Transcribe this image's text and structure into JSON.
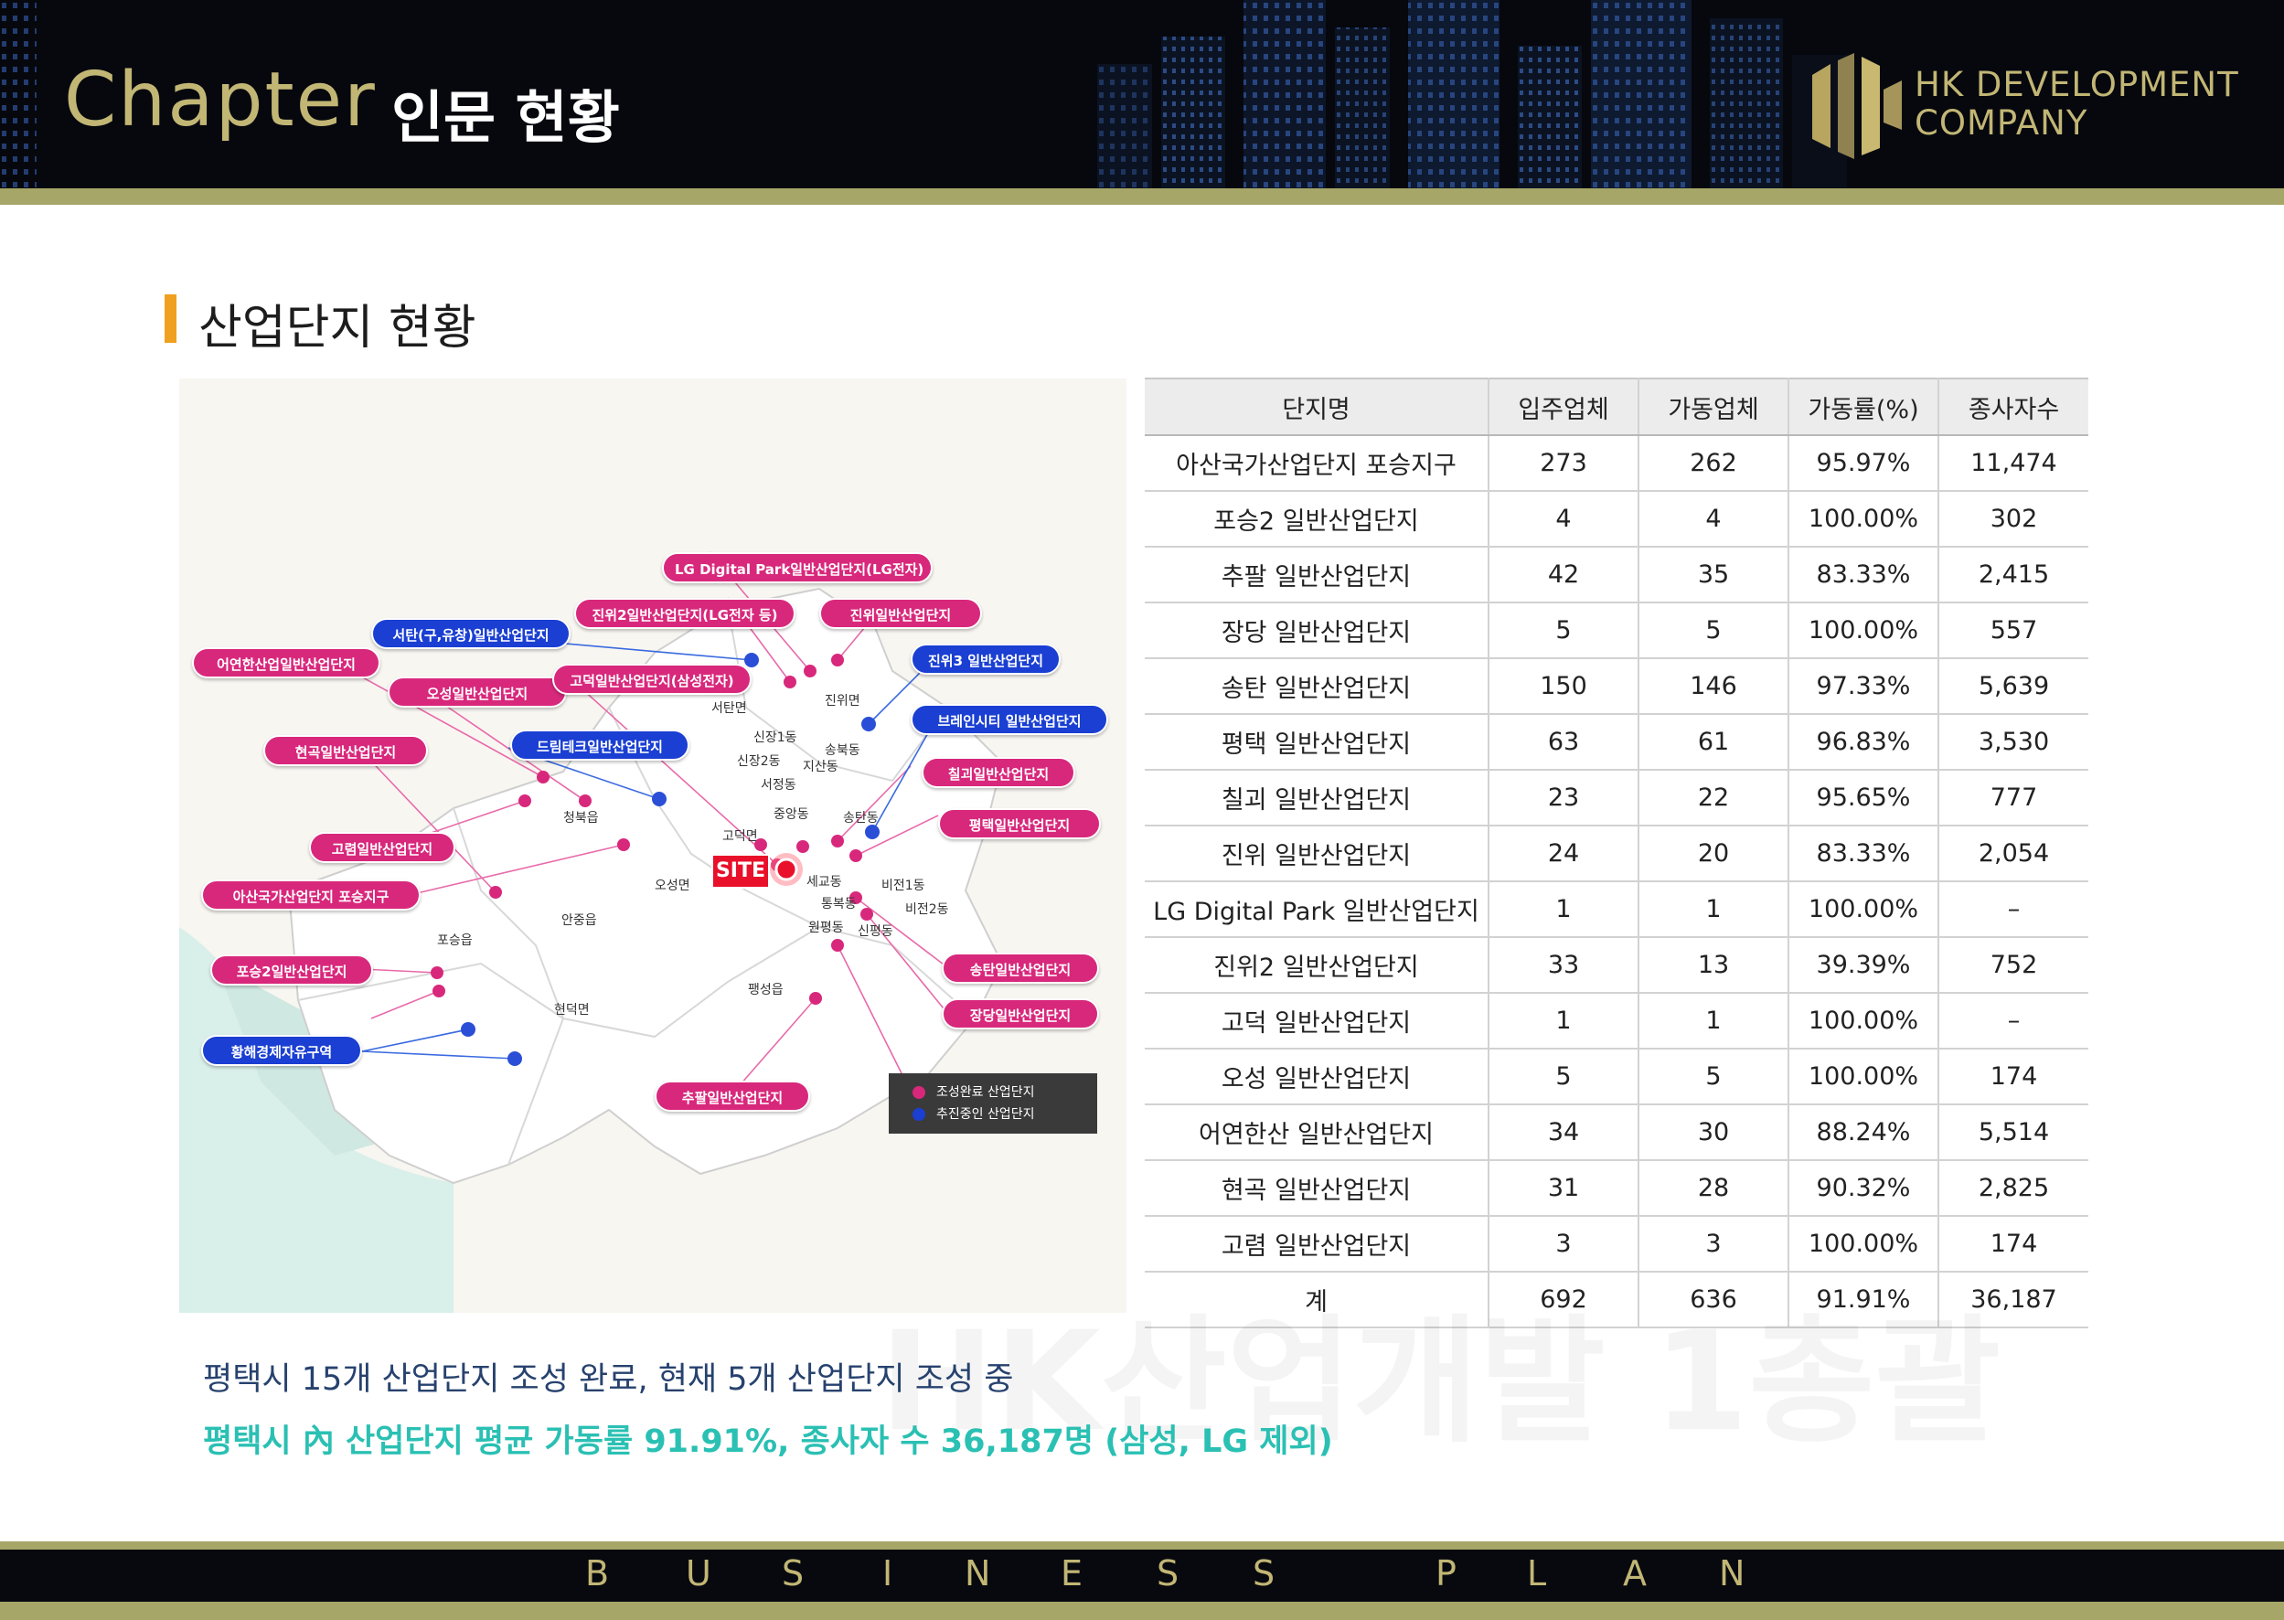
{
  "header": {
    "chapter": "Chapter",
    "subtitle": "인문 현황",
    "company_line1": "HK DEVELOPMENT",
    "company_line2": "COMPANY"
  },
  "section": {
    "title": "산업단지 현황"
  },
  "map": {
    "labels": [
      "LG Digital Park일반산업단지(LG전자)",
      "진위2일반산업단지(LG전자 등)",
      "진위일반산업단지",
      "서탄(구,유창)일반산업단지",
      "어연한산업일반산업단지",
      "오성일반산업단지",
      "고덕일반산업단지(삼성전자)",
      "진위3 일반산업단지",
      "브레인시티 일반산업단지",
      "현곡일반산업단지",
      "드림테크일반산업단지",
      "칠괴일반산업단지",
      "평택일반산업단지",
      "고렴일반산업단지",
      "아산국가산업단지 포승지구",
      "포승2일반산업단지",
      "황해경제자유구역",
      "송탄일반산업단지",
      "장당일반산업단지",
      "추팔일반산업단지"
    ],
    "places": [
      "서탄면",
      "진위면",
      "신장1동",
      "신장2동",
      "송북동",
      "지산동",
      "서정동",
      "중앙동",
      "송탄동",
      "청북읍",
      "고덕면",
      "오성면",
      "세교동",
      "통복동",
      "원평동",
      "신평동",
      "비전1동",
      "비전2동",
      "안중읍",
      "포승읍",
      "현덕면",
      "팽성읍"
    ],
    "site": "SITE",
    "legend": [
      "조성완료 산업단지",
      "추진중인 산업단지"
    ],
    "colors": {
      "complete": "#d8287c",
      "planned": "#1a3fd2"
    }
  },
  "table": {
    "headers": [
      "단지명",
      "입주업체",
      "가동업체",
      "가동률(%)",
      "종사자수"
    ],
    "rows": [
      [
        "아산국가산업단지 포승지구",
        "273",
        "262",
        "95.97%",
        "11,474"
      ],
      [
        "포승2 일반산업단지",
        "4",
        "4",
        "100.00%",
        "302"
      ],
      [
        "추팔 일반산업단지",
        "42",
        "35",
        "83.33%",
        "2,415"
      ],
      [
        "장당 일반산업단지",
        "5",
        "5",
        "100.00%",
        "557"
      ],
      [
        "송탄 일반산업단지",
        "150",
        "146",
        "97.33%",
        "5,639"
      ],
      [
        "평택 일반산업단지",
        "63",
        "61",
        "96.83%",
        "3,530"
      ],
      [
        "칠괴 일반산업단지",
        "23",
        "22",
        "95.65%",
        "777"
      ],
      [
        "진위 일반산업단지",
        "24",
        "20",
        "83.33%",
        "2,054"
      ],
      [
        "LG Digital Park 일반산업단지",
        "1",
        "1",
        "100.00%",
        "–"
      ],
      [
        "진위2 일반산업단지",
        "33",
        "13",
        "39.39%",
        "752"
      ],
      [
        "고덕 일반산업단지",
        "1",
        "1",
        "100.00%",
        "–"
      ],
      [
        "오성 일반산업단지",
        "5",
        "5",
        "100.00%",
        "174"
      ],
      [
        "어연한산 일반산업단지",
        "34",
        "30",
        "88.24%",
        "5,514"
      ],
      [
        "현곡 일반산업단지",
        "31",
        "28",
        "90.32%",
        "2,825"
      ],
      [
        "고렴 일반산업단지",
        "3",
        "3",
        "100.00%",
        "174"
      ]
    ],
    "total": [
      "계",
      "692",
      "636",
      "91.91%",
      "36,187"
    ]
  },
  "watermark": "HK산업개발 1총괄",
  "notes": {
    "line1": "평택시 15개 산업단지 조성 완료, 현재 5개 산업단지 조성 중",
    "line2": "평택시 內 산업단지 평균 가동률 91.91%, 종사자 수 36,187명 (삼성, LG 제외)"
  },
  "footer": {
    "letters": [
      "B",
      "U",
      "S",
      "I",
      "N",
      "E",
      "S",
      "S",
      "P",
      "L",
      "A",
      "N"
    ]
  }
}
